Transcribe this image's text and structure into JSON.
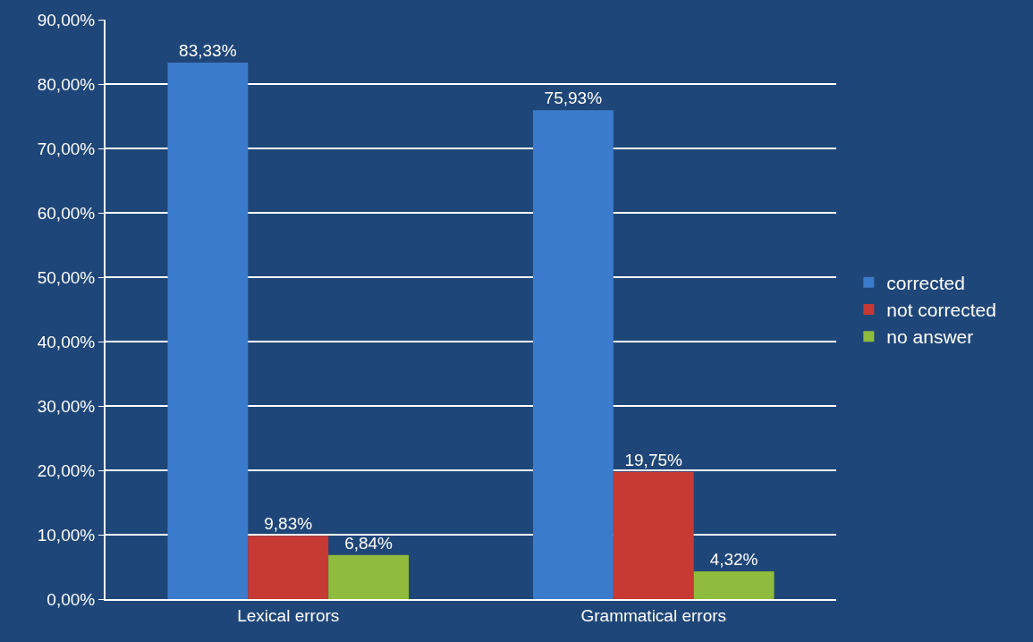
{
  "chart_data": {
    "type": "bar",
    "categories": [
      "Lexical errors",
      "Grammatical errors"
    ],
    "series": [
      {
        "name": "corrected",
        "color": "#3b7bcc",
        "values": [
          83.33,
          75.93
        ],
        "value_labels": [
          "83,33%",
          "75,93%"
        ]
      },
      {
        "name": "not corrected",
        "color": "#c63a33",
        "values": [
          9.83,
          19.75
        ],
        "value_labels": [
          "9,83%",
          "19,75%"
        ]
      },
      {
        "name": "no answer",
        "color": "#8fbc3c",
        "values": [
          6.84,
          4.32
        ],
        "value_labels": [
          "6,84%",
          "4,32%"
        ]
      }
    ],
    "ylim": [
      0,
      90
    ],
    "yticks": [
      {
        "value": 0,
        "label": "0,00%"
      },
      {
        "value": 10,
        "label": "10,00%"
      },
      {
        "value": 20,
        "label": "20,00%"
      },
      {
        "value": 30,
        "label": "30,00%"
      },
      {
        "value": 40,
        "label": "40,00%"
      },
      {
        "value": 50,
        "label": "50,00%"
      },
      {
        "value": 60,
        "label": "60,00%"
      },
      {
        "value": 70,
        "label": "70,00%"
      },
      {
        "value": 80,
        "label": "80,00%"
      },
      {
        "value": 90,
        "label": "90,00%"
      }
    ],
    "grid": "y",
    "legend": "right"
  }
}
